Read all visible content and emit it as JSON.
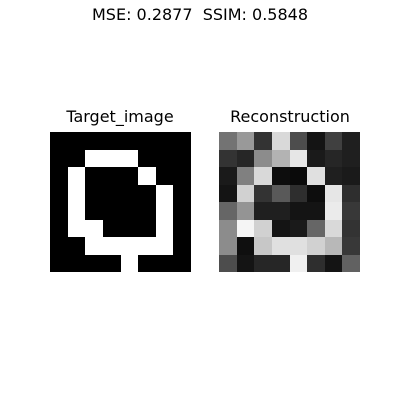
{
  "figure": {
    "suptitle": "MSE: 0.2877  SSIM: 0.5848"
  },
  "chart_data": [
    {
      "type": "heatmap",
      "title": "Target_image",
      "colormap": "gray",
      "rows": 8,
      "cols": 8,
      "values": [
        [
          0,
          0,
          0,
          0,
          0,
          0,
          0,
          0
        ],
        [
          0,
          0,
          1,
          1,
          1,
          0,
          0,
          0
        ],
        [
          0,
          1,
          0,
          0,
          0,
          1,
          0,
          0
        ],
        [
          0,
          1,
          0,
          0,
          0,
          0,
          1,
          0
        ],
        [
          0,
          1,
          0,
          0,
          0,
          0,
          1,
          0
        ],
        [
          0,
          1,
          1,
          0,
          0,
          0,
          1,
          0
        ],
        [
          0,
          0,
          1,
          1,
          1,
          1,
          1,
          0
        ],
        [
          0,
          0,
          0,
          0,
          1,
          0,
          0,
          0
        ]
      ]
    },
    {
      "type": "heatmap",
      "title": "Reconstruction",
      "colormap": "gray",
      "rows": 8,
      "cols": 8,
      "values": [
        [
          0.45,
          0.6,
          0.2,
          0.85,
          0.3,
          0.08,
          0.25,
          0.12
        ],
        [
          0.2,
          0.15,
          0.55,
          0.7,
          0.9,
          0.1,
          0.15,
          0.12
        ],
        [
          0.1,
          0.5,
          0.85,
          0.05,
          0.04,
          0.88,
          0.12,
          0.1
        ],
        [
          0.08,
          0.82,
          0.2,
          0.35,
          0.18,
          0.05,
          0.9,
          0.18
        ],
        [
          0.4,
          0.58,
          0.12,
          0.12,
          0.08,
          0.08,
          0.92,
          0.22
        ],
        [
          0.55,
          0.96,
          0.82,
          0.08,
          0.1,
          0.4,
          0.85,
          0.2
        ],
        [
          0.55,
          0.06,
          0.78,
          0.88,
          0.88,
          0.82,
          0.72,
          0.22
        ],
        [
          0.3,
          0.08,
          0.15,
          0.15,
          0.94,
          0.18,
          0.08,
          0.38
        ]
      ]
    }
  ]
}
